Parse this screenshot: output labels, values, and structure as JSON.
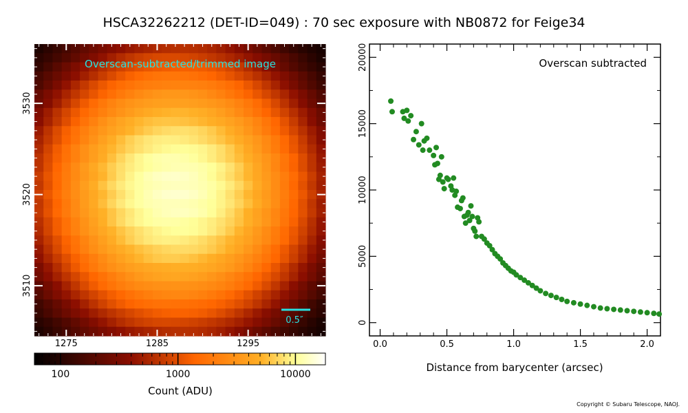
{
  "title": "HSCA32262212 (DET-ID=049) :  70 sec exposure with NB0872 for Feige34",
  "copyright": "Copyright © Subaru Telescope, NAOJ.",
  "chart_data": [
    {
      "type": "heatmap",
      "annotation": "Overscan-subtracted/trimmed image",
      "scale_bar_label": "0.5″",
      "x_ticks": [
        "1275",
        "1285",
        "1295"
      ],
      "x_tick_values": [
        1275,
        1285,
        1295
      ],
      "y_ticks": [
        "3530",
        "3520",
        "3510"
      ],
      "y_tick_values": [
        3530,
        3520,
        3510
      ],
      "xlim": [
        1271.5,
        1303.5
      ],
      "ylim": [
        3504.5,
        3536.5
      ],
      "peak_center": [
        1287,
        3520.5
      ],
      "colormap": "afmhot",
      "colorbar": {
        "label": "Count (ADU)",
        "scale": "log",
        "range": [
          60,
          18000
        ],
        "ticks": [
          "100",
          "1000",
          "10000"
        ],
        "tick_values": [
          100,
          1000,
          10000
        ]
      }
    },
    {
      "type": "scatter",
      "annotation": "Overscan subtracted",
      "xlabel": "Distance from barycenter (arcsec)",
      "ylabel": "",
      "xlim": [
        -0.08,
        2.1
      ],
      "ylim": [
        -1000,
        21000
      ],
      "x_ticks": [
        "0.0",
        "0.5",
        "1.0",
        "1.5",
        "2.0"
      ],
      "x_tick_values": [
        0,
        0.5,
        1,
        1.5,
        2
      ],
      "y_ticks": [
        "0",
        "5000",
        "10000",
        "15000",
        "20000"
      ],
      "y_tick_values": [
        0,
        5000,
        10000,
        15000,
        20000
      ],
      "color": "#228b22",
      "x": [
        0.08,
        0.09,
        0.17,
        0.18,
        0.2,
        0.21,
        0.23,
        0.25,
        0.27,
        0.29,
        0.31,
        0.32,
        0.33,
        0.35,
        0.37,
        0.4,
        0.41,
        0.42,
        0.43,
        0.44,
        0.45,
        0.46,
        0.47,
        0.48,
        0.5,
        0.51,
        0.53,
        0.54,
        0.55,
        0.56,
        0.57,
        0.58,
        0.6,
        0.61,
        0.62,
        0.63,
        0.64,
        0.65,
        0.66,
        0.67,
        0.68,
        0.69,
        0.7,
        0.71,
        0.72,
        0.73,
        0.74,
        0.76,
        0.78,
        0.8,
        0.82,
        0.84,
        0.86,
        0.88,
        0.9,
        0.92,
        0.94,
        0.96,
        0.98,
        1.0,
        1.02,
        1.05,
        1.08,
        1.11,
        1.14,
        1.17,
        1.2,
        1.24,
        1.28,
        1.32,
        1.36,
        1.4,
        1.45,
        1.5,
        1.55,
        1.6,
        1.65,
        1.7,
        1.75,
        1.8,
        1.85,
        1.9,
        1.95,
        2.0,
        2.05,
        2.09
      ],
      "y": [
        16700,
        15900,
        15900,
        15400,
        16000,
        15200,
        15600,
        13800,
        14400,
        13400,
        15000,
        13000,
        13700,
        13900,
        13000,
        12600,
        11900,
        13200,
        12000,
        10800,
        11100,
        12500,
        10600,
        10100,
        10900,
        10800,
        10300,
        10000,
        10900,
        9600,
        9900,
        8700,
        8600,
        9200,
        9400,
        8000,
        7500,
        8100,
        8300,
        7700,
        8800,
        8000,
        7100,
        6900,
        6500,
        7900,
        7600,
        6500,
        6300,
        6000,
        5800,
        5500,
        5200,
        5000,
        4800,
        4500,
        4300,
        4100,
        3900,
        3800,
        3600,
        3400,
        3200,
        3000,
        2800,
        2600,
        2400,
        2200,
        2050,
        1900,
        1750,
        1600,
        1500,
        1400,
        1300,
        1200,
        1100,
        1050,
        1000,
        950,
        900,
        850,
        800,
        750,
        700,
        650
      ]
    }
  ]
}
